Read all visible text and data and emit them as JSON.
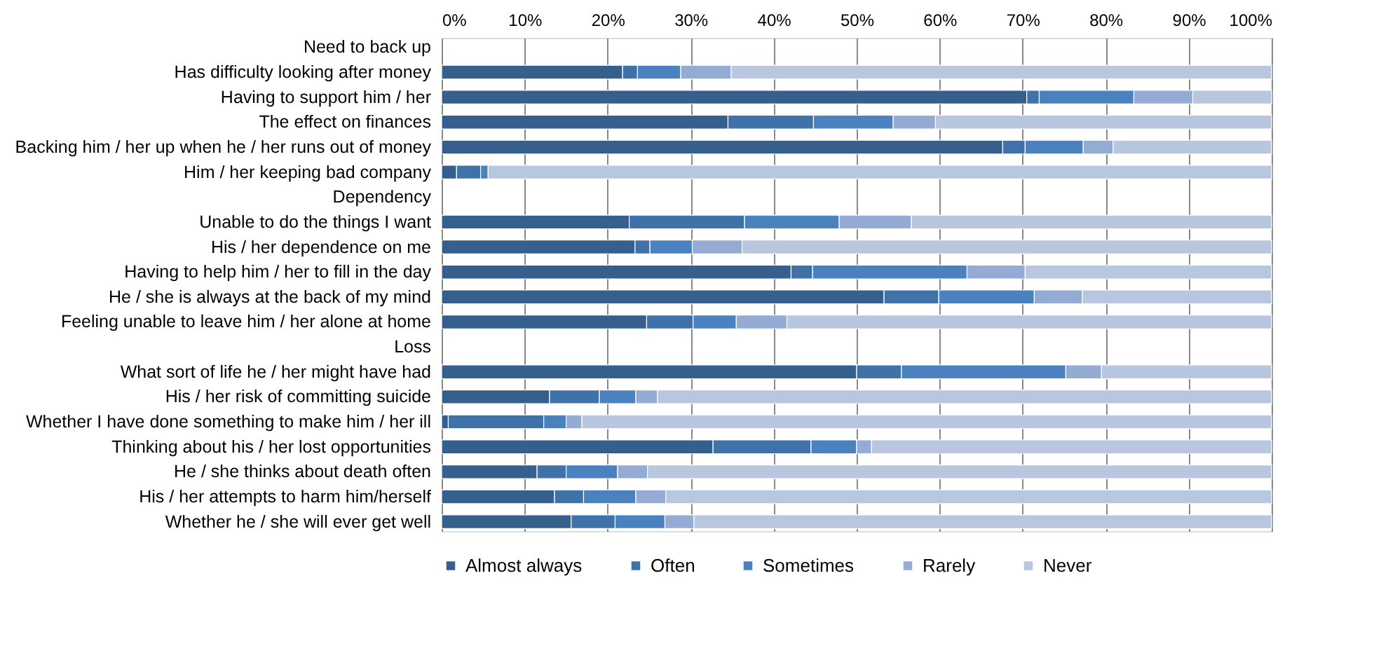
{
  "chart_data": {
    "type": "bar",
    "orientation": "horizontal",
    "stacked": true,
    "grid": "x",
    "legend": "bottom",
    "categories": [
      "Need to back up",
      "Has difficulty looking after money",
      "Having to support him / her",
      "The effect on finances",
      "Backing him / her up when he / her runs out of money",
      "Him / her keeping bad company",
      "Dependency",
      "Unable to do the things I want",
      "His / her dependence on me",
      "Having to help him / her to  fill in the day",
      "He / she is always at the back of my mind",
      "Feeling unable to leave him / her alone at home",
      "Loss",
      "What sort of life he / her might have had",
      "His / her risk of committing suicide",
      "Whether I have done something to make him / her ill",
      "Thinking  about his / her lost opportunities",
      "He / she thinks about death often",
      "His / her attempts to harm him/herself",
      "Whether he / she will ever get well"
    ],
    "xlim": [
      0,
      100
    ],
    "xticks": [
      {
        "value": 0,
        "label": "0%"
      },
      {
        "value": 10,
        "label": "10%"
      },
      {
        "value": 20,
        "label": "20%"
      },
      {
        "value": 30,
        "label": "30%"
      },
      {
        "value": 40,
        "label": "40%"
      },
      {
        "value": 50,
        "label": "50%"
      },
      {
        "value": 60,
        "label": "60%"
      },
      {
        "value": 70,
        "label": "70%"
      },
      {
        "value": 80,
        "label": "80%"
      },
      {
        "value": 90,
        "label": "90%"
      },
      {
        "value": 100,
        "label": "100%"
      }
    ],
    "series": [
      {
        "name": "Almost always",
        "color": "#355f8d",
        "values": [
          null,
          21.8,
          70.5,
          34.5,
          67.6,
          1.8,
          null,
          22.6,
          23.3,
          42.1,
          53.3,
          24.7,
          null,
          50.0,
          13.0,
          0.8,
          32.7,
          11.5,
          13.6,
          15.6
        ]
      },
      {
        "name": "Often",
        "color": "#3f72a8",
        "values": [
          null,
          1.8,
          1.5,
          10.3,
          2.7,
          2.9,
          null,
          13.9,
          1.8,
          2.6,
          6.6,
          5.6,
          null,
          5.4,
          6.0,
          11.5,
          11.8,
          3.5,
          3.5,
          5.3
        ]
      },
      {
        "name": "Sometimes",
        "color": "#4a82c0",
        "values": [
          null,
          5.2,
          11.4,
          9.6,
          7.0,
          0.9,
          null,
          11.4,
          5.1,
          18.6,
          11.5,
          5.2,
          null,
          19.8,
          4.4,
          2.7,
          5.5,
          6.2,
          6.3,
          6.0
        ]
      },
      {
        "name": "Rarely",
        "color": "#94abd3",
        "values": [
          null,
          6.1,
          7.1,
          5.1,
          3.6,
          null,
          null,
          8.7,
          6.0,
          7.0,
          5.8,
          6.1,
          null,
          4.3,
          2.6,
          1.9,
          1.8,
          3.6,
          3.6,
          3.5
        ]
      },
      {
        "name": "Never",
        "color": "#b9c6e0",
        "values": [
          null,
          65.1,
          9.5,
          40.5,
          19.1,
          94.4,
          null,
          43.4,
          63.8,
          29.7,
          22.8,
          58.4,
          null,
          20.5,
          74.0,
          83.1,
          48.2,
          75.2,
          73.0,
          69.6
        ]
      }
    ]
  }
}
